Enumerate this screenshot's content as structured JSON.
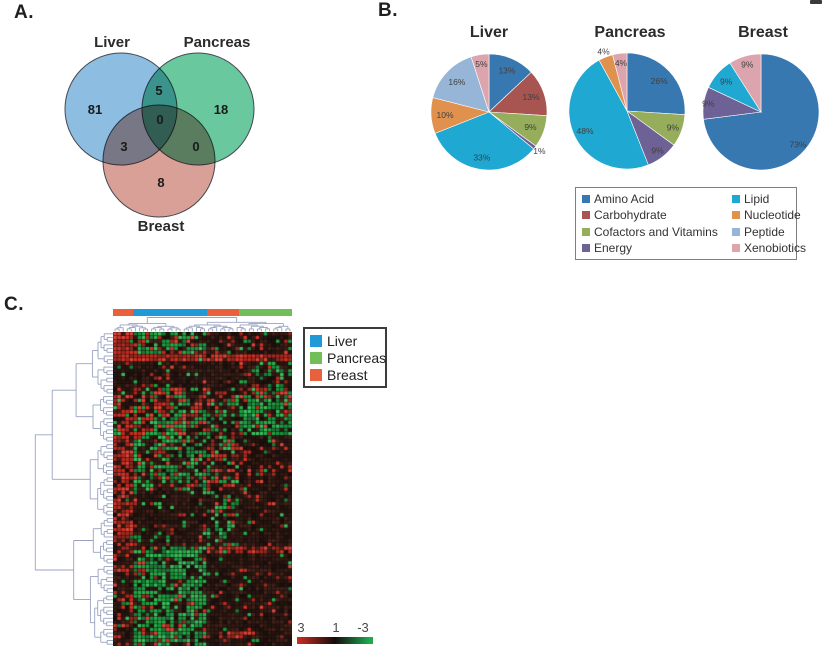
{
  "panels": {
    "a": "A.",
    "b": "B.",
    "c": "C."
  },
  "palette": {
    "Amino Acid": "#3878B0",
    "Carbohydrate": "#A85450",
    "Cofactors and Vitamins": "#96AE5B",
    "Energy": "#6E6195",
    "Lipid": "#1FA8D2",
    "Nucleotide": "#E0914E",
    "Peptide": "#97B5D7",
    "Xenobiotics": "#DCA4AC"
  },
  "group_colors": {
    "Liver": "#1F9AD7",
    "Pancreas": "#72BF5A",
    "Breast": "#E8613C"
  },
  "pie_legend": {
    "left": [
      "Amino Acid",
      "Carbohydrate",
      "Cofactors and Vitamins",
      "Energy"
    ],
    "right": [
      "Lipid",
      "Nucleotide",
      "Peptide",
      "Xenobiotics"
    ]
  },
  "chart_data": [
    {
      "type": "venn",
      "sets": [
        {
          "name": "Liver",
          "color": "#79B2DB"
        },
        {
          "name": "Pancreas",
          "color": "#4FBE8D"
        },
        {
          "name": "Breast",
          "color": "#D18F85"
        }
      ],
      "regions": [
        {
          "id": "liver_only",
          "label": "Liver only",
          "value": 81
        },
        {
          "id": "liver_pancreas",
          "label": "Liver ∩ Pancreas",
          "value": 5
        },
        {
          "id": "pancreas_only",
          "label": "Pancreas only",
          "value": 18
        },
        {
          "id": "center",
          "label": "Liver ∩ Pancreas ∩ Breast",
          "value": 0
        },
        {
          "id": "liver_breast",
          "label": "Liver ∩ Breast",
          "value": 3
        },
        {
          "id": "pancreas_breast",
          "label": "Pancreas ∩ Breast",
          "value": 0
        },
        {
          "id": "breast_only",
          "label": "Breast only",
          "value": 8
        }
      ]
    },
    {
      "type": "pie",
      "title": "Liver",
      "categories": [
        "Amino Acid",
        "Carbohydrate",
        "Cofactors and Vitamins",
        "Energy",
        "Lipid",
        "Nucleotide",
        "Peptide",
        "Xenobiotics"
      ],
      "values": [
        13,
        13,
        9,
        1,
        33,
        10,
        16,
        5
      ]
    },
    {
      "type": "pie",
      "title": "Pancreas",
      "categories": [
        "Amino Acid",
        "Cofactors and Vitamins",
        "Energy",
        "Lipid",
        "Nucleotide",
        "Xenobiotics"
      ],
      "values": [
        26,
        9,
        9,
        48,
        4,
        4
      ]
    },
    {
      "type": "pie",
      "title": "Breast",
      "categories": [
        "Amino Acid",
        "Energy",
        "Lipid",
        "Xenobiotics"
      ],
      "values": [
        73,
        9,
        9,
        9
      ]
    },
    {
      "type": "heatmap",
      "rows": 85,
      "cols": 44,
      "seed": 11,
      "legend": [
        "Liver",
        "Pancreas",
        "Breast"
      ],
      "col_groups": [
        {
          "name": "Breast",
          "span": [
            0,
            4
          ]
        },
        {
          "name": "Liver",
          "span": [
            5,
            22
          ]
        },
        {
          "name": "Breast",
          "span": [
            23,
            30
          ]
        },
        {
          "name": "Pancreas",
          "span": [
            31,
            43
          ]
        }
      ],
      "scale": {
        "labels": [
          "3",
          "1",
          "-3"
        ],
        "colors": [
          "#CF2D22",
          "#140C0A",
          "#1FA84F"
        ]
      },
      "cell_colors": {
        "red": [
          "#d63226",
          "#c22b1f",
          "#e0453a",
          "#a82a20",
          "#8c2b20"
        ],
        "green": [
          "#27b04c",
          "#1ea343",
          "#3cbf5f",
          "#159a3d",
          "#1d7a3c"
        ],
        "dark": [
          "#261412",
          "#2e1a14",
          "#1c100d",
          "#3a1f17",
          "#44221a",
          "#23150f",
          "#331a12"
        ]
      },
      "blocks": [
        {
          "r": [
            0,
            84
          ],
          "c": [
            0,
            43
          ],
          "w": [
            0.1,
            0.06,
            0.84
          ]
        },
        {
          "r": [
            0,
            5
          ],
          "c": [
            0,
            4
          ],
          "w": [
            0.8,
            0.03,
            0.17
          ]
        },
        {
          "r": [
            0,
            5
          ],
          "c": [
            5,
            22
          ],
          "w": [
            0.22,
            0.5,
            0.28
          ]
        },
        {
          "r": [
            6,
            7
          ],
          "c": [
            0,
            43
          ],
          "w": [
            0.92,
            0.01,
            0.07
          ]
        },
        {
          "r": [
            8,
            14
          ],
          "c": [
            0,
            43
          ],
          "w": [
            0.07,
            0.05,
            0.88
          ]
        },
        {
          "r": [
            8,
            14
          ],
          "c": [
            31,
            43
          ],
          "w": [
            0.15,
            0.3,
            0.55
          ]
        },
        {
          "r": [
            15,
            27
          ],
          "c": [
            0,
            4
          ],
          "w": [
            0.45,
            0.15,
            0.4
          ]
        },
        {
          "r": [
            15,
            27
          ],
          "c": [
            5,
            22
          ],
          "w": [
            0.34,
            0.33,
            0.33
          ]
        },
        {
          "r": [
            15,
            27
          ],
          "c": [
            23,
            30
          ],
          "w": [
            0.25,
            0.3,
            0.45
          ]
        },
        {
          "r": [
            15,
            17
          ],
          "c": [
            31,
            43
          ],
          "w": [
            0.25,
            0.35,
            0.4
          ]
        },
        {
          "r": [
            18,
            27
          ],
          "c": [
            31,
            43
          ],
          "w": [
            0.12,
            0.68,
            0.2
          ]
        },
        {
          "r": [
            28,
            42
          ],
          "c": [
            0,
            4
          ],
          "w": [
            0.8,
            0.02,
            0.18
          ]
        },
        {
          "r": [
            28,
            42
          ],
          "c": [
            5,
            22
          ],
          "w": [
            0.18,
            0.42,
            0.4
          ]
        },
        {
          "r": [
            28,
            42
          ],
          "c": [
            23,
            30
          ],
          "w": [
            0.3,
            0.25,
            0.45
          ]
        },
        {
          "r": [
            28,
            42
          ],
          "c": [
            31,
            43
          ],
          "w": [
            0.14,
            0.04,
            0.82
          ]
        },
        {
          "r": [
            43,
            57
          ],
          "c": [
            0,
            4
          ],
          "w": [
            0.72,
            0.02,
            0.26
          ]
        },
        {
          "r": [
            43,
            57
          ],
          "c": [
            5,
            22
          ],
          "w": [
            0.05,
            0.08,
            0.87
          ]
        },
        {
          "r": [
            43,
            57
          ],
          "c": [
            23,
            30
          ],
          "w": [
            0.12,
            0.38,
            0.5
          ]
        },
        {
          "r": [
            43,
            57
          ],
          "c": [
            31,
            43
          ],
          "w": [
            0.06,
            0.03,
            0.91
          ]
        },
        {
          "r": [
            58,
            59
          ],
          "c": [
            23,
            43
          ],
          "w": [
            0.75,
            0.03,
            0.22
          ]
        },
        {
          "r": [
            58,
            84
          ],
          "c": [
            0,
            4
          ],
          "w": [
            0.3,
            0.04,
            0.66
          ]
        },
        {
          "r": [
            58,
            84
          ],
          "c": [
            5,
            22
          ],
          "w": [
            0.08,
            0.62,
            0.3
          ]
        },
        {
          "r": [
            60,
            84
          ],
          "c": [
            23,
            43
          ],
          "w": [
            0.09,
            0.04,
            0.87
          ]
        },
        {
          "r": [
            81,
            82
          ],
          "c": [
            26,
            34
          ],
          "w": [
            0.8,
            0.03,
            0.17
          ]
        }
      ]
    }
  ]
}
